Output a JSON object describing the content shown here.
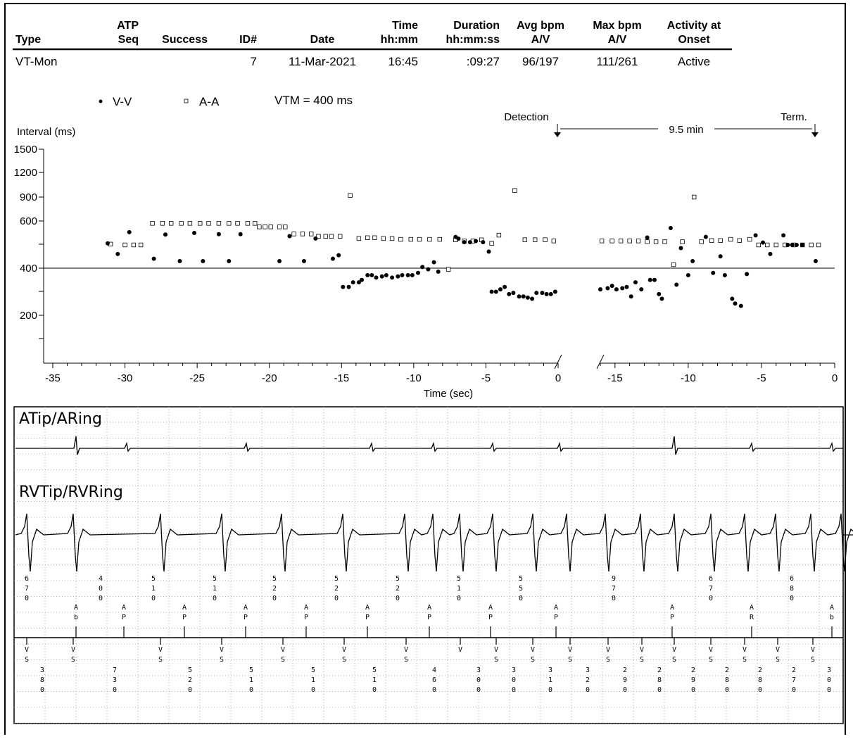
{
  "header": {
    "columns": [
      {
        "line1": "",
        "line2": "Type"
      },
      {
        "line1": "ATP",
        "line2": "Seq"
      },
      {
        "line1": "",
        "line2": "Success"
      },
      {
        "line1": "",
        "line2": "ID#"
      },
      {
        "line1": "",
        "line2": "Date"
      },
      {
        "line1": "Time",
        "line2": "hh:mm"
      },
      {
        "line1": "Duration",
        "line2": "hh:mm:ss"
      },
      {
        "line1": "Avg bpm",
        "line2": "A/V"
      },
      {
        "line1": "Max bpm",
        "line2": "A/V"
      },
      {
        "line1": "Activity at",
        "line2": "Onset"
      }
    ],
    "row": [
      "VT-Mon",
      "",
      "",
      "7",
      "11-Mar-2021",
      "16:45",
      ":09:27",
      "96/197",
      "111/261",
      "Active"
    ]
  },
  "legend": {
    "vv": "V-V",
    "aa": "A-A",
    "vtm": "VTM = 400 ms"
  },
  "annotations": {
    "detection": "Detection",
    "termination": "Term.",
    "duration": "9.5 min"
  },
  "chart_data": {
    "type": "scatter",
    "ylabel": "Interval (ms)",
    "xlabel": "Time (sec)",
    "yticks": [
      1500,
      1200,
      900,
      600,
      400,
      200
    ],
    "vtm_line": 400,
    "left_panel": {
      "xlim": [
        -35,
        0
      ],
      "xticks": [
        "-35",
        "-30",
        "-25",
        "-20",
        "-15",
        "-10",
        "-5",
        "0"
      ],
      "vv": [
        [
          -31.2,
          620
        ],
        [
          -30.5,
          460
        ],
        [
          -29.7,
          760
        ],
        [
          -28,
          440
        ],
        [
          -27.2,
          730
        ],
        [
          -26.2,
          430
        ],
        [
          -25.2,
          750
        ],
        [
          -24.6,
          430
        ],
        [
          -23.5,
          735
        ],
        [
          -22.8,
          430
        ],
        [
          -22,
          735
        ],
        [
          -19.3,
          430
        ],
        [
          -18.6,
          710
        ],
        [
          -17.6,
          430
        ],
        [
          -16.8,
          680
        ],
        [
          -15.6,
          440
        ],
        [
          -15.2,
          455
        ],
        [
          -14.9,
          320
        ],
        [
          -14.5,
          320
        ],
        [
          -14.2,
          340
        ],
        [
          -13.8,
          340
        ],
        [
          -13.6,
          350
        ],
        [
          -13.2,
          370
        ],
        [
          -12.9,
          370
        ],
        [
          -12.6,
          360
        ],
        [
          -12.2,
          365
        ],
        [
          -11.9,
          370
        ],
        [
          -11.5,
          360
        ],
        [
          -11.1,
          365
        ],
        [
          -10.8,
          370
        ],
        [
          -10.4,
          370
        ],
        [
          -10.1,
          370
        ],
        [
          -9.7,
          380
        ],
        [
          -9.4,
          405
        ],
        [
          -9.0,
          395
        ],
        [
          -8.6,
          425
        ],
        [
          -8.3,
          385
        ],
        [
          -7.1,
          700
        ],
        [
          -6.9,
          525
        ],
        [
          -6.5,
          510
        ],
        [
          -6.1,
          510
        ],
        [
          -5.7,
          515
        ],
        [
          -5.2,
          510
        ],
        [
          -4.8,
          470
        ],
        [
          -4.6,
          300
        ],
        [
          -4.3,
          300
        ],
        [
          -4.0,
          310
        ],
        [
          -3.7,
          320
        ],
        [
          -3.4,
          290
        ],
        [
          -3.1,
          295
        ],
        [
          -2.7,
          280
        ],
        [
          -2.4,
          280
        ],
        [
          -2.1,
          275
        ],
        [
          -1.8,
          270
        ],
        [
          -1.5,
          295
        ],
        [
          -1.1,
          295
        ],
        [
          -0.8,
          290
        ],
        [
          -0.5,
          290
        ],
        [
          -0.2,
          300
        ]
      ],
      "aa": [
        [
          -31,
          610
        ],
        [
          -30,
          600
        ],
        [
          -29.4,
          600
        ],
        [
          -28.9,
          600
        ],
        [
          -28.1,
          590
        ],
        [
          -27.4,
          590
        ],
        [
          -26.8,
          590
        ],
        [
          -26.1,
          590
        ],
        [
          -25.5,
          590
        ],
        [
          -24.8,
          590
        ],
        [
          -24.2,
          590
        ],
        [
          -23.5,
          590
        ],
        [
          -22.8,
          590
        ],
        [
          -22.2,
          590
        ],
        [
          -21.5,
          590
        ],
        [
          -21,
          590
        ],
        [
          -20.7,
          575
        ],
        [
          -20.3,
          575
        ],
        [
          -19.9,
          575
        ],
        [
          -19.3,
          575
        ],
        [
          -18.9,
          575
        ],
        [
          -18.3,
          545
        ],
        [
          -17.7,
          545
        ],
        [
          -17.1,
          545
        ],
        [
          -16.6,
          535
        ],
        [
          -16.1,
          535
        ],
        [
          -15.7,
          535
        ],
        [
          -15.1,
          535
        ],
        [
          -14.4,
          920
        ],
        [
          -13.8,
          680
        ],
        [
          -13.2,
          690
        ],
        [
          -12.7,
          690
        ],
        [
          -12.1,
          680
        ],
        [
          -11.5,
          680
        ],
        [
          -10.9,
          670
        ],
        [
          -10.2,
          670
        ],
        [
          -9.6,
          670
        ],
        [
          -8.9,
          670
        ],
        [
          -8.2,
          670
        ],
        [
          -7.6,
          395
        ],
        [
          -7.1,
          520
        ],
        [
          -6.5,
          515
        ],
        [
          -5.9,
          515
        ],
        [
          -5.3,
          520
        ],
        [
          -4.6,
          505
        ],
        [
          -4.1,
          540
        ],
        [
          -3.0,
          980
        ],
        [
          -2.3,
          665
        ],
        [
          -1.6,
          665
        ],
        [
          -0.9,
          665
        ],
        [
          -0.3,
          650
        ]
      ]
    },
    "right_panel": {
      "xlim": [
        -16,
        0
      ],
      "xticks": [
        "-15",
        "-10",
        "-5",
        "0"
      ],
      "vv": [
        [
          -16,
          310
        ],
        [
          -15.5,
          315
        ],
        [
          -15.2,
          325
        ],
        [
          -14.9,
          310
        ],
        [
          -14.5,
          315
        ],
        [
          -14.2,
          320
        ],
        [
          -13.9,
          280
        ],
        [
          -13.6,
          340
        ],
        [
          -13.2,
          310
        ],
        [
          -12.8,
          530
        ],
        [
          -12.6,
          350
        ],
        [
          -12.3,
          350
        ],
        [
          -12,
          290
        ],
        [
          -11.8,
          270
        ],
        [
          -11.2,
          570
        ],
        [
          -10.8,
          330
        ],
        [
          -10.5,
          485
        ],
        [
          -10,
          370
        ],
        [
          -9.7,
          430
        ],
        [
          -8.8,
          700
        ],
        [
          -8.3,
          380
        ],
        [
          -7.8,
          450
        ],
        [
          -7.5,
          370
        ],
        [
          -7,
          270
        ],
        [
          -6.8,
          250
        ],
        [
          -6.4,
          240
        ],
        [
          -6,
          375
        ],
        [
          -5.4,
          720
        ],
        [
          -4.9,
          630
        ],
        [
          -4.4,
          460
        ],
        [
          -3.5,
          720
        ],
        [
          -3.2,
          600
        ],
        [
          -2.9,
          600
        ],
        [
          -2.6,
          600
        ],
        [
          -2.2,
          600
        ],
        [
          -1.3,
          430
        ]
      ],
      "aa": [
        [
          -15.9,
          650
        ],
        [
          -15.2,
          650
        ],
        [
          -14.6,
          650
        ],
        [
          -14,
          650
        ],
        [
          -13.4,
          650
        ],
        [
          -12.8,
          640
        ],
        [
          -12.2,
          640
        ],
        [
          -11.6,
          640
        ],
        [
          -11.0,
          415
        ],
        [
          -10.4,
          640
        ],
        [
          -9.6,
          900
        ],
        [
          -9.1,
          640
        ],
        [
          -8.4,
          655
        ],
        [
          -7.8,
          655
        ],
        [
          -7.1,
          670
        ],
        [
          -6.5,
          655
        ],
        [
          -5.8,
          670
        ],
        [
          -5.2,
          600
        ],
        [
          -4.6,
          600
        ],
        [
          -4,
          600
        ],
        [
          -3.4,
          600
        ],
        [
          -2.8,
          600
        ],
        [
          -2.2,
          600
        ],
        [
          -1.6,
          600
        ],
        [
          -1.1,
          600
        ]
      ]
    }
  },
  "egm": {
    "atrial_label": "ATip/ARing",
    "ventricular_label": "RVTip/RVRing",
    "ventricular_intervals": [
      "670",
      "400",
      "510",
      "510",
      "520",
      "520",
      "520",
      "510",
      "550",
      "970",
      "670",
      "680"
    ],
    "atrial_markers": [
      "Ab",
      "AP",
      "AP",
      "AP",
      "AP",
      "AP",
      "AP",
      "AP",
      "AP",
      "AP",
      "AR",
      "Ab",
      "AR"
    ],
    "v_markers": [
      "VS",
      "VS",
      "VS",
      "VS",
      "VS",
      "VS",
      "VS",
      "V",
      "VS",
      "VS",
      "VS",
      "VS",
      "VS",
      "VS",
      "VS",
      "VS",
      "VS",
      "VS",
      "VS",
      "VS",
      "VS",
      "VS",
      "VS",
      "VS",
      "VS",
      "VS"
    ],
    "vv_intervals": [
      "380",
      "730",
      "520",
      "510",
      "510",
      "510",
      "460",
      "300",
      "300",
      "310",
      "320",
      "290",
      "280",
      "290",
      "280",
      "280",
      "270",
      "300"
    ]
  }
}
